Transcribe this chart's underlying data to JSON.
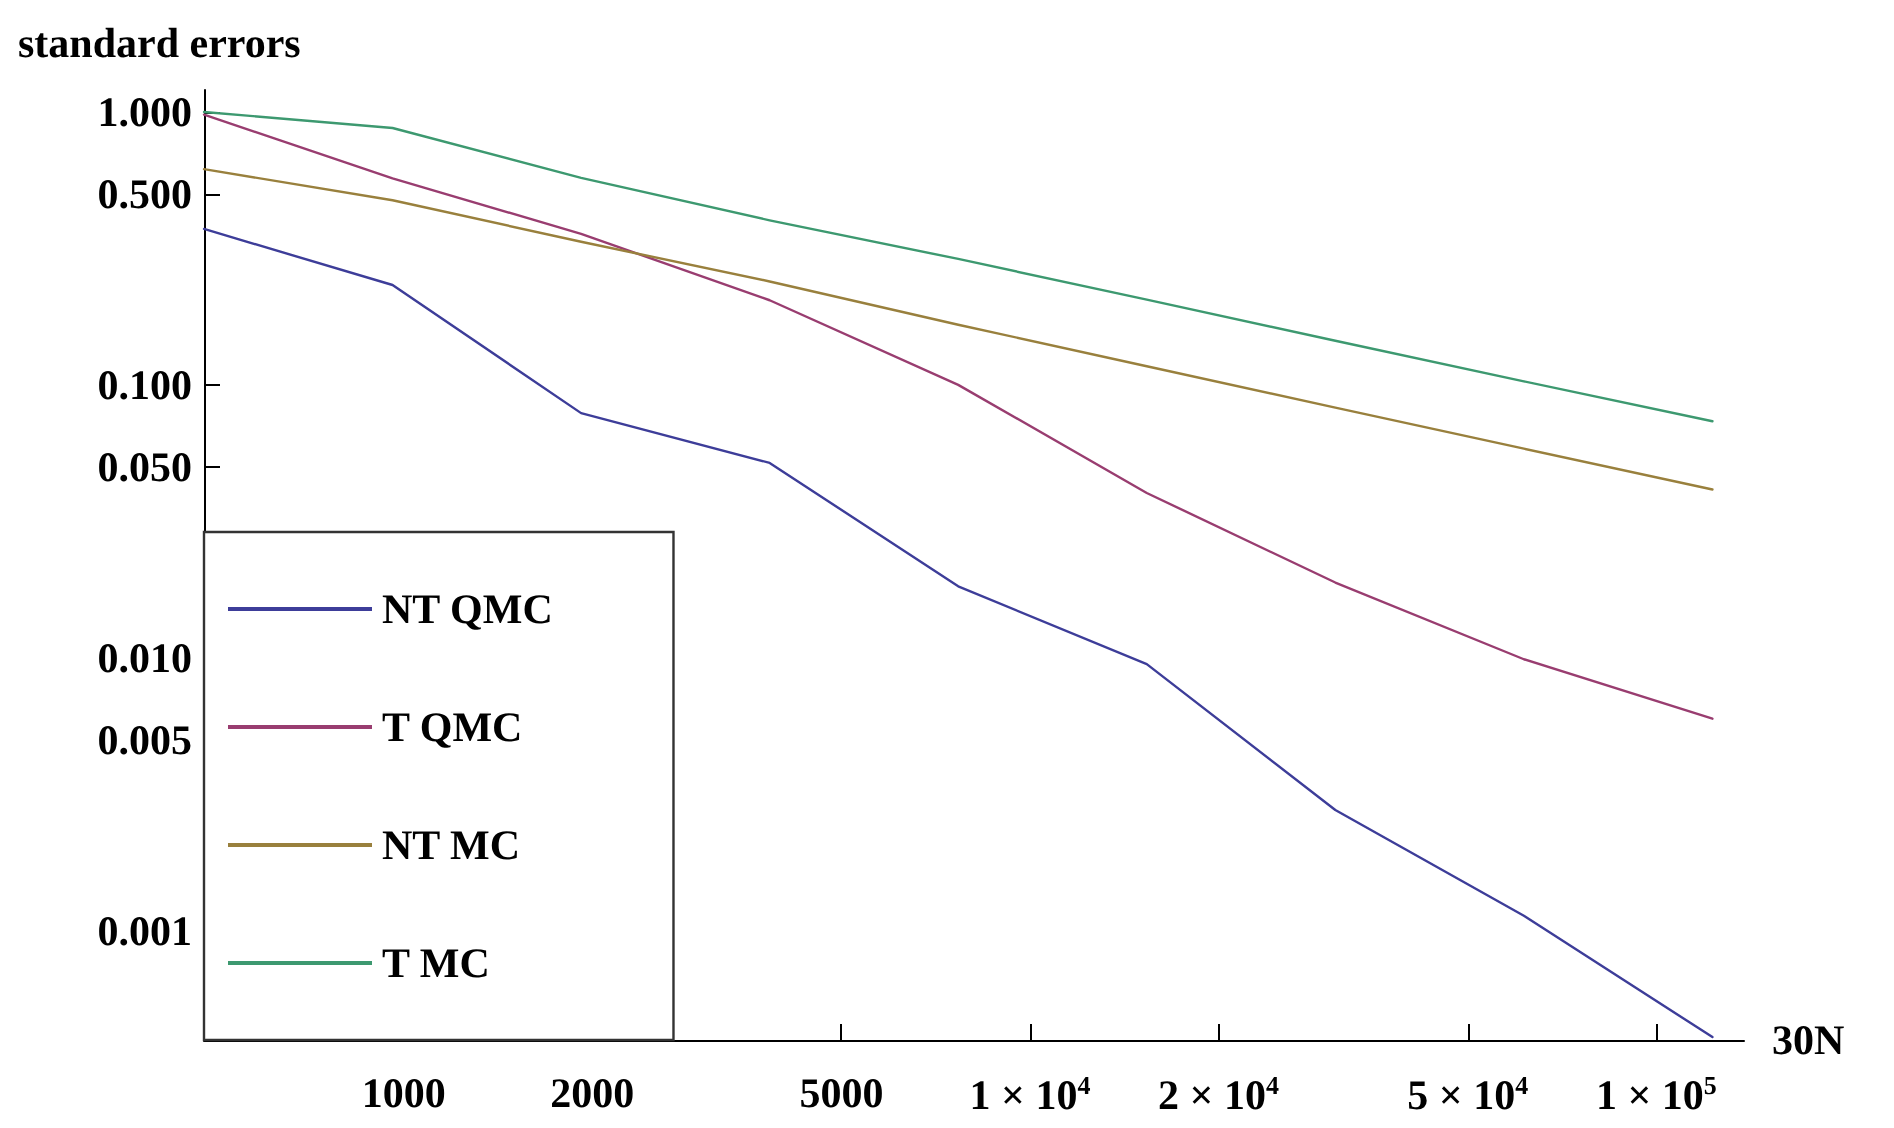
{
  "chart_data": {
    "type": "line",
    "xlabel": "30N",
    "ylabel": "standard errors",
    "log": "xy",
    "grid": false,
    "legend": "bottom left",
    "marker": "none",
    "line_style": "solid",
    "x": [
      480,
      960,
      1920,
      3840,
      7680,
      15360,
      30720,
      61440,
      122880
    ],
    "xlim": [
      480,
      138000
    ],
    "xticks": [
      1000,
      2000,
      5000,
      {
        "value": 10000,
        "label": "1 × 10$^{4}$"
      },
      {
        "value": 20000,
        "label": "2 × 10$^{4}$"
      },
      {
        "value": 50000,
        "label": "5 × 10$^{4}$"
      },
      {
        "value": 100000,
        "label": "1 × 10$^{5}$"
      }
    ],
    "ylim": [
      0.0004,
      1.2
    ],
    "yticks": [
      {
        "value": 0.001,
        "label": "0.001"
      },
      {
        "value": 0.005,
        "label": "0.005"
      },
      {
        "value": 0.01,
        "label": "0.010"
      },
      {
        "value": 0.05,
        "label": "0.050"
      },
      {
        "value": 0.1,
        "label": "0.100"
      },
      {
        "value": 0.5,
        "label": "0.500"
      },
      {
        "value": 1,
        "label": "1.000"
      }
    ],
    "series": [
      {
        "name": "NT QMC",
        "color": "#3d3d99",
        "values": [
          0.372,
          0.232,
          0.0788,
          0.0518,
          0.0183,
          0.0095,
          0.00278,
          0.00114,
          0.00041
        ]
      },
      {
        "name": "T QMC",
        "color": "#993d70",
        "values": [
          0.975,
          0.57,
          0.357,
          0.204,
          0.1,
          0.0402,
          0.0189,
          0.0099,
          0.006
        ]
      },
      {
        "name": "NT MC",
        "color": "#99803d",
        "values": [
          0.616,
          0.474,
          0.334,
          0.239,
          0.166,
          0.117,
          0.0825,
          0.0584,
          0.0414
        ]
      },
      {
        "name": "T MC",
        "color": "#3d9970",
        "values": [
          0.997,
          0.871,
          0.572,
          0.4,
          0.289,
          0.205,
          0.145,
          0.103,
          0.0736
        ]
      }
    ]
  }
}
